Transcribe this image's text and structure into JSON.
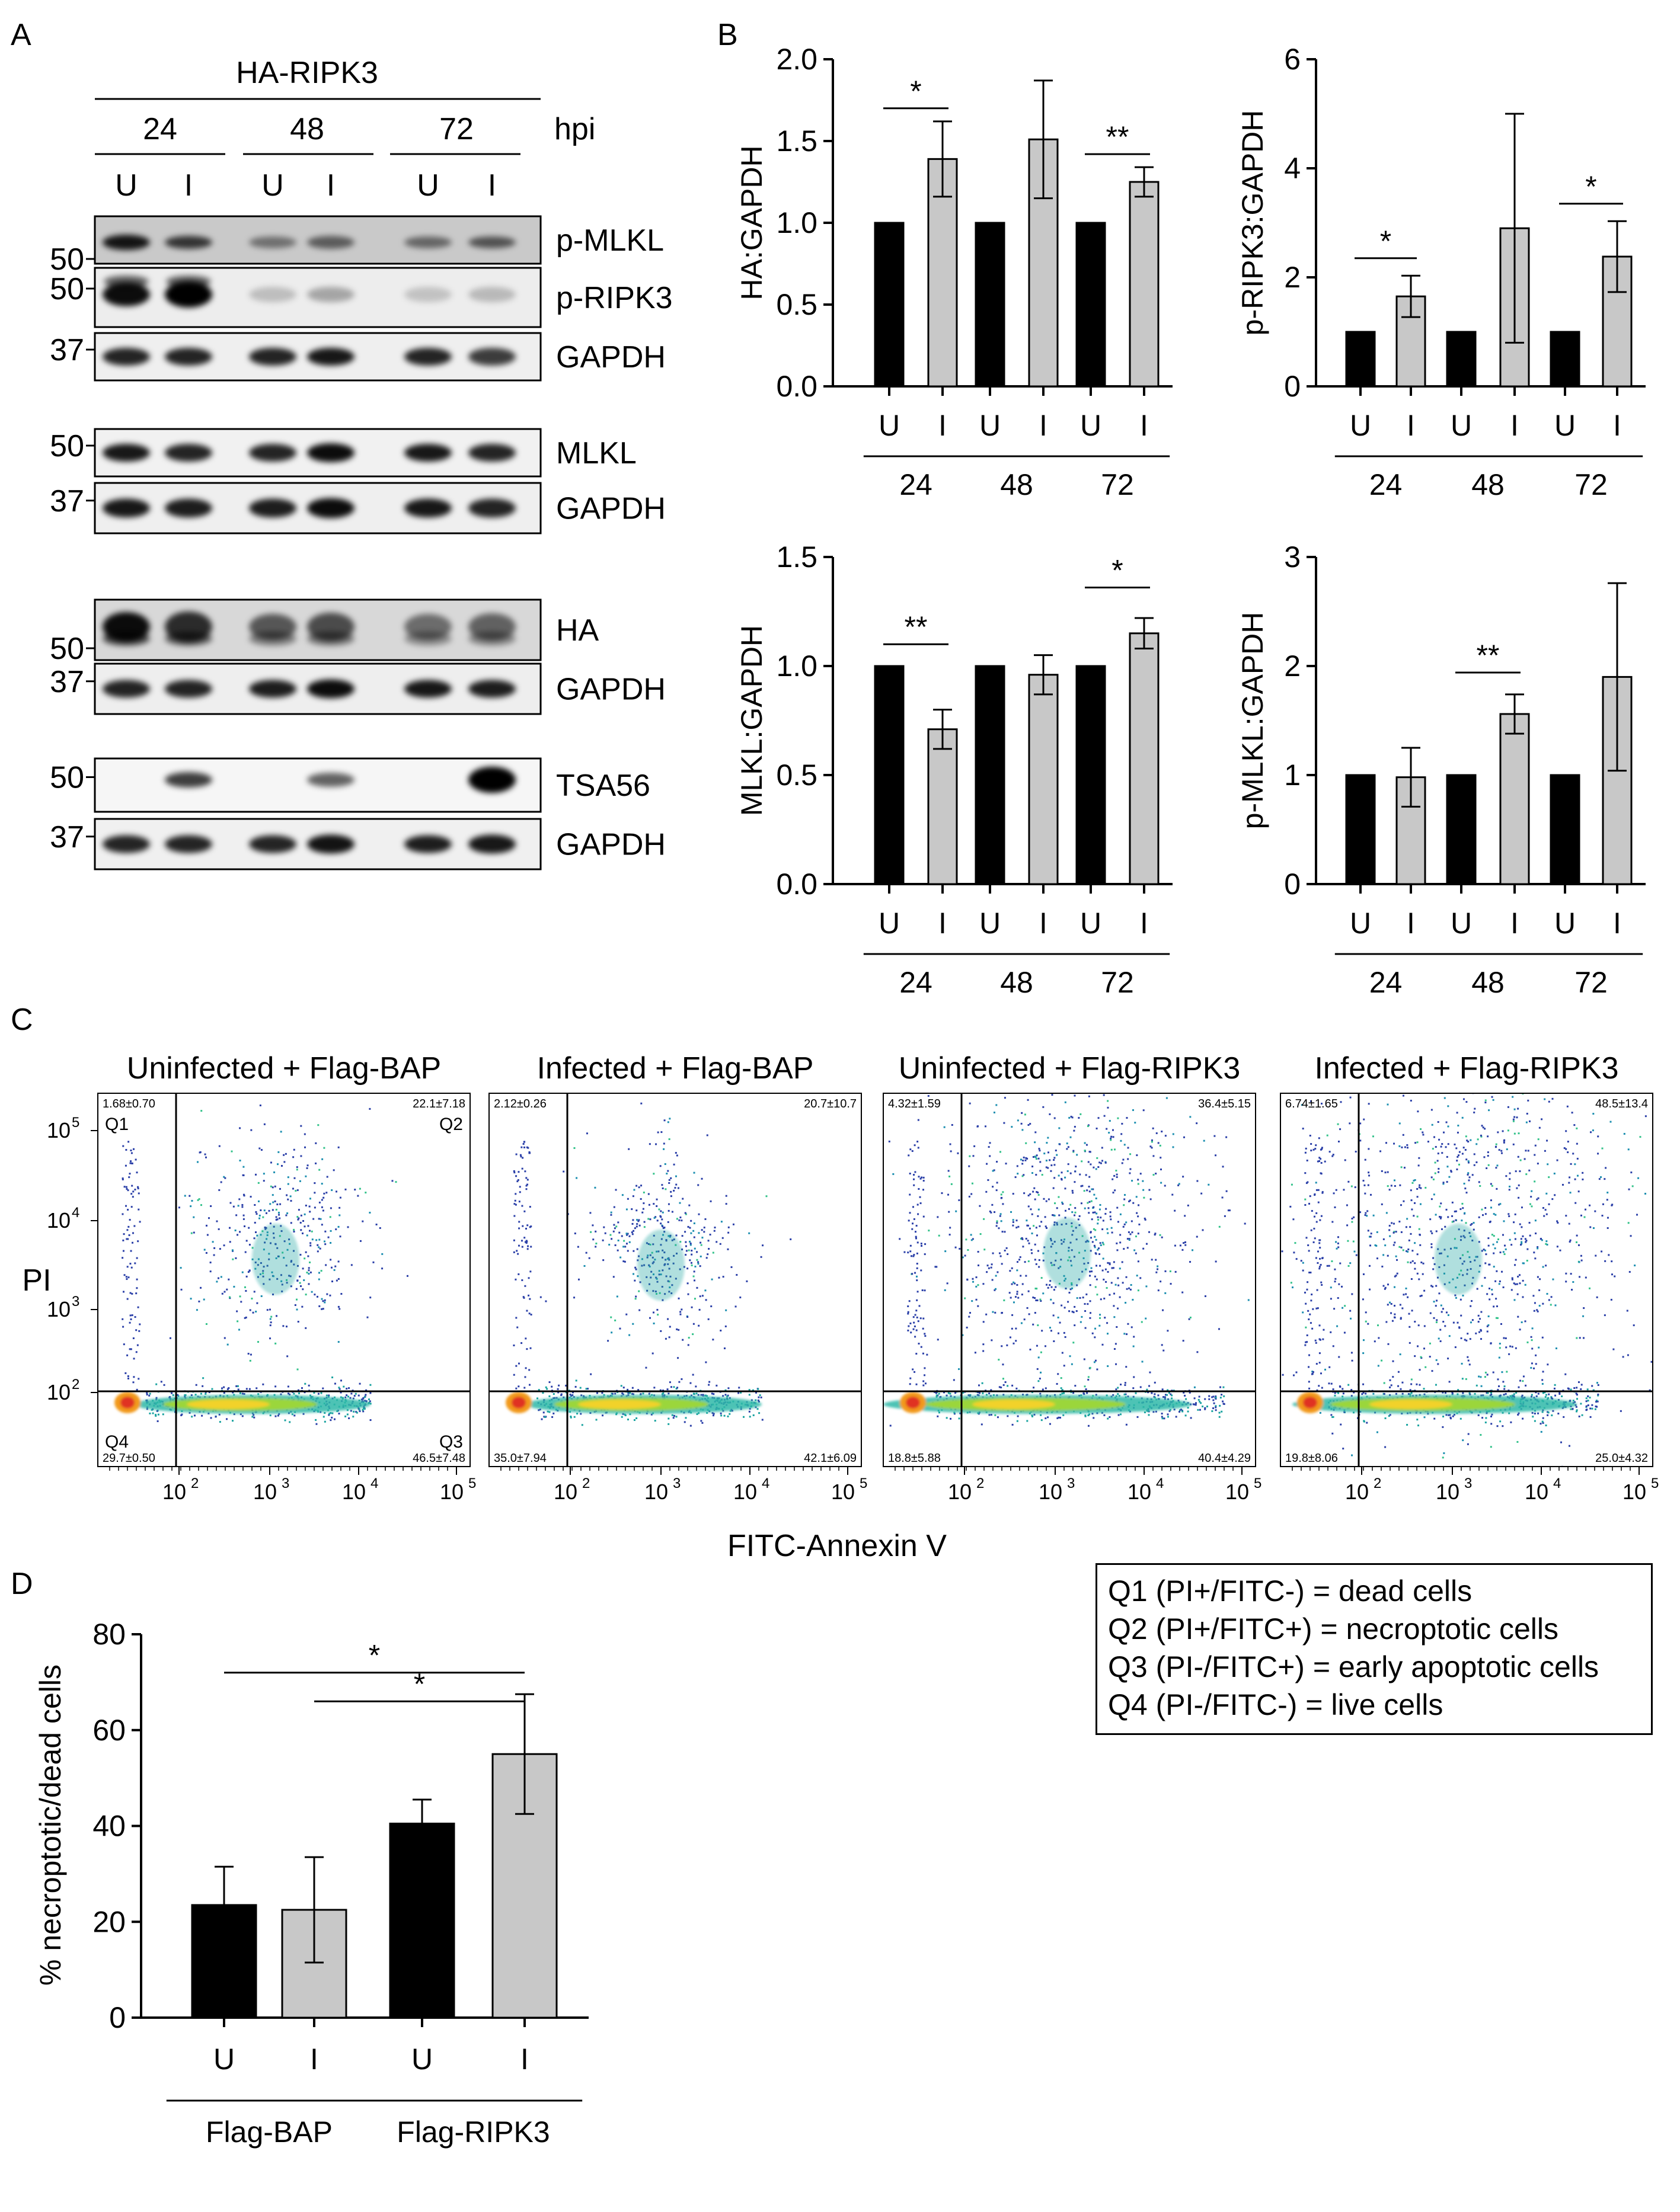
{
  "colors": {
    "uninfected_bar": "#000000",
    "infected_bar": "#c8c8c8",
    "line": "#000000"
  },
  "panelA": {
    "label": "A",
    "construct": "HA-RIPK3",
    "hpi_label": "hpi",
    "timepoints": [
      "24",
      "48",
      "72"
    ],
    "lanes": [
      "U",
      "I",
      "U",
      "I",
      "U",
      "I"
    ],
    "blots": [
      {
        "name": "p-MLKL",
        "marker": "50"
      },
      {
        "name": "p-RIPK3",
        "marker": "50"
      },
      {
        "name": "GAPDH",
        "marker": "37"
      },
      {
        "name": "MLKL",
        "marker": "50"
      },
      {
        "name": "GAPDH",
        "marker": "37"
      },
      {
        "name": "HA",
        "marker": "50"
      },
      {
        "name": "GAPDH",
        "marker": "37"
      },
      {
        "name": "TSA56",
        "marker": "50"
      },
      {
        "name": "GAPDH",
        "marker": "37"
      }
    ]
  },
  "panelB_label": "B",
  "panelC": {
    "label": "C",
    "xlabel": "FITC-Annexin V",
    "ylabel": "PI",
    "y_ticks": [
      "10",
      "10",
      "10",
      "10"
    ],
    "y_tick_exps": [
      "5",
      "4",
      "3",
      "2"
    ],
    "x_ticks": [
      "10",
      "10",
      "10",
      "10"
    ],
    "x_tick_exps": [
      "2",
      "3",
      "4",
      "5"
    ],
    "quadrant_names": [
      "Q1",
      "Q2",
      "Q3",
      "Q4"
    ],
    "plots": [
      {
        "title": "Uninfected + Flag-BAP",
        "q1": "1.68±0.70",
        "q2": "22.1±7.18",
        "q3": "46.5±7.48",
        "q4": "29.7±0.50"
      },
      {
        "title": "Infected + Flag-BAP",
        "q1": "2.12±0.26",
        "q2": "20.7±10.7",
        "q3": "42.1±6.09",
        "q4": "35.0±7.94"
      },
      {
        "title": "Uninfected + Flag-RIPK3",
        "q1": "4.32±1.59",
        "q2": "36.4±5.15",
        "q3": "40.4±4.29",
        "q4": "18.8±5.88"
      },
      {
        "title": "Infected + Flag-RIPK3",
        "q1": "6.74±1.65",
        "q2": "48.5±13.4",
        "q3": "25.0±4.32",
        "q4": "19.8±8.06"
      }
    ]
  },
  "panelD_label": "D",
  "legend": [
    "Q1 (PI+/FITC-) = dead cells",
    "Q2 (PI+/FITC+) = necroptotic cells",
    "Q3 (PI-/FITC+) = early apoptotic cells",
    "Q4 (PI-/FITC-) = live cells"
  ],
  "chart_data": [
    {
      "type": "bar",
      "panel": "B",
      "ylabel": "HA:GAPDH",
      "ylim": [
        0,
        2.0
      ],
      "yticks": [
        "0.0",
        "0.5",
        "1.0",
        "1.5",
        "2.0"
      ],
      "ytick_values": [
        0,
        0.5,
        1.0,
        1.5,
        2.0
      ],
      "categories": [
        "U",
        "I",
        "U",
        "I",
        "U",
        "I"
      ],
      "groups": [
        "24",
        "48",
        "72"
      ],
      "values": [
        1.0,
        1.39,
        1.0,
        1.51,
        1.0,
        1.25
      ],
      "errors": [
        0,
        0.23,
        0,
        0.36,
        0,
        0.09
      ],
      "significance": [
        {
          "group": 0,
          "label": "*",
          "y": 1.7
        },
        {
          "group": 2,
          "label": "**",
          "y": 1.42
        }
      ]
    },
    {
      "type": "bar",
      "panel": "B",
      "ylabel": "p-RIPK3:GAPDH",
      "ylim": [
        0,
        6
      ],
      "yticks": [
        "0",
        "2",
        "4",
        "6"
      ],
      "ytick_values": [
        0,
        2,
        4,
        6
      ],
      "categories": [
        "U",
        "I",
        "U",
        "I",
        "U",
        "I"
      ],
      "groups": [
        "24",
        "48",
        "72"
      ],
      "values": [
        1.0,
        1.65,
        1.0,
        2.9,
        1.0,
        2.38
      ],
      "errors": [
        0,
        0.38,
        0,
        2.1,
        0,
        0.65
      ],
      "significance": [
        {
          "group": 0,
          "label": "*",
          "y": 2.35
        },
        {
          "group": 2,
          "label": "*",
          "y": 3.35
        }
      ]
    },
    {
      "type": "bar",
      "panel": "B",
      "ylabel": "MLKL:GAPDH",
      "ylim": [
        0,
        1.5
      ],
      "yticks": [
        "0.0",
        "0.5",
        "1.0",
        "1.5"
      ],
      "ytick_values": [
        0,
        0.5,
        1.0,
        1.5
      ],
      "categories": [
        "U",
        "I",
        "U",
        "I",
        "U",
        "I"
      ],
      "groups": [
        "24",
        "48",
        "72"
      ],
      "values": [
        1.0,
        0.71,
        1.0,
        0.96,
        1.0,
        1.15
      ],
      "errors": [
        0,
        0.09,
        0,
        0.09,
        0,
        0.07
      ],
      "significance": [
        {
          "group": 0,
          "label": "**",
          "y": 1.1
        },
        {
          "group": 2,
          "label": "*",
          "y": 1.36
        }
      ]
    },
    {
      "type": "bar",
      "panel": "B",
      "ylabel": "p-MLKL:GAPDH",
      "ylim": [
        0,
        3
      ],
      "yticks": [
        "0",
        "1",
        "2",
        "3"
      ],
      "ytick_values": [
        0,
        1,
        2,
        3
      ],
      "categories": [
        "U",
        "I",
        "U",
        "I",
        "U",
        "I"
      ],
      "groups": [
        "24",
        "48",
        "72"
      ],
      "values": [
        1.0,
        0.98,
        1.0,
        1.56,
        1.0,
        1.9
      ],
      "errors": [
        0,
        0.27,
        0,
        0.18,
        0,
        0.86
      ],
      "significance": [
        {
          "group": 1,
          "label": "**",
          "y": 1.94
        }
      ]
    },
    {
      "type": "bar",
      "panel": "D",
      "ylabel": "% necroptotic/dead cells",
      "ylim": [
        0,
        80
      ],
      "yticks": [
        "0",
        "20",
        "40",
        "60",
        "80"
      ],
      "ytick_values": [
        0,
        20,
        40,
        60,
        80
      ],
      "categories": [
        "U",
        "I",
        "U",
        "I"
      ],
      "groups": [
        "Flag-BAP",
        "Flag-RIPK3"
      ],
      "values": [
        23.5,
        22.5,
        40.5,
        55.0
      ],
      "errors": [
        8.0,
        11.0,
        5.0,
        12.5
      ],
      "significance": [
        {
          "from": 0,
          "to": 3,
          "label": "*",
          "y": 72
        },
        {
          "from": 1,
          "to": 3,
          "label": "*",
          "y": 66
        }
      ]
    }
  ]
}
